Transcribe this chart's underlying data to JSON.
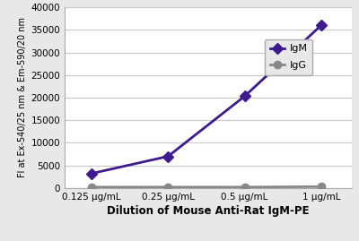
{
  "x_labels": [
    "0.125 μg/mL",
    "0.25 μg/mL",
    "0.5 μg/mL",
    "1 μg/mL"
  ],
  "x_values": [
    1,
    2,
    3,
    4
  ],
  "IgM_values": [
    3200,
    7000,
    20300,
    36000
  ],
  "IgG_values": [
    200,
    200,
    200,
    300
  ],
  "IgM_color": "#3d1a8e",
  "IgG_color": "#888888",
  "IgM_label": "IgM",
  "IgG_label": "IgG",
  "ylabel": "Fl at Ex-540/25 nm & Em-590/20 nm",
  "xlabel": "Dilution of Mouse Anti-Rat IgM-PE",
  "ylim": [
    0,
    40000
  ],
  "yticks": [
    0,
    5000,
    10000,
    15000,
    20000,
    25000,
    30000,
    35000,
    40000
  ],
  "background_color": "#e8e8e8",
  "plot_bg_color": "#ffffff",
  "grid_color": "#c8c8c8",
  "linewidth": 2.0,
  "markersize": 6,
  "IgM_marker": "D",
  "IgG_marker": "o"
}
